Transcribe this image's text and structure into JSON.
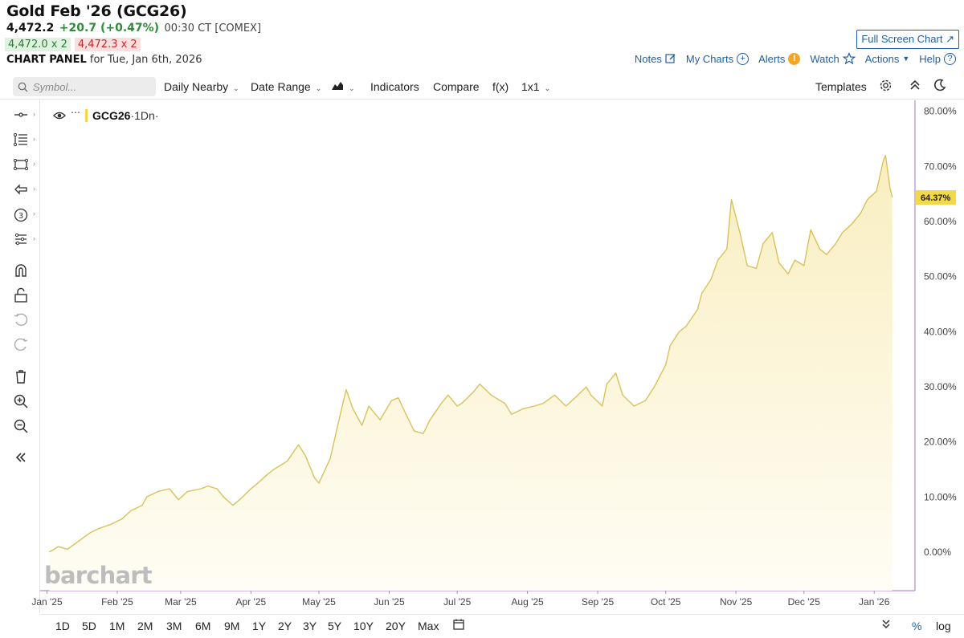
{
  "header": {
    "title": "Gold Feb '26 (GCG26)",
    "last": "4,472.2",
    "change": "+20.7 (+0.47%)",
    "time": "00:30 CT [COMEX]",
    "bid": "4,472.0 x 2",
    "ask": "4,472.3 x 2",
    "panel_label": "CHART PANEL",
    "panel_date": "for Tue, Jan 6th, 2026",
    "full_screen": "Full Screen Chart",
    "links": [
      "Notes",
      "My Charts",
      "Alerts",
      "Watch",
      "Actions",
      "Help"
    ]
  },
  "toolbar": {
    "symbol_placeholder": "Symbol...",
    "interval": "Daily Nearby",
    "date_range": "Date Range",
    "indicators": "Indicators",
    "compare": "Compare",
    "fx": "f(x)",
    "layout": "1x1",
    "templates": "Templates"
  },
  "legend": {
    "symbol": "GCG26",
    "suffix": "·1Dn·"
  },
  "watermark": "barchart",
  "ranges": [
    "1D",
    "5D",
    "1M",
    "2M",
    "3M",
    "6M",
    "9M",
    "1Y",
    "2Y",
    "3Y",
    "5Y",
    "10Y",
    "20Y",
    "Max"
  ],
  "bottom": {
    "pct": "%",
    "log": "log"
  },
  "colors": {
    "line": "#d9c25a",
    "fill_top": "#f9eec0",
    "fill_bottom": "#fffdf5",
    "tag": "#f3d84a",
    "link": "#1f5fa8"
  },
  "chart_data": {
    "type": "area",
    "y_ticks": [
      "80.00%",
      "70.00%",
      "60.00%",
      "50.00%",
      "40.00%",
      "30.00%",
      "20.00%",
      "10.00%",
      "0.00%"
    ],
    "ylim": [
      -7,
      82
    ],
    "x_ticks": [
      "Jan '25",
      "Feb '25",
      "Mar '25",
      "Apr '25",
      "May '25",
      "Jun '25",
      "Jul '25",
      "Aug '25",
      "Sep '25",
      "Oct '25",
      "Nov '25",
      "Dec '25",
      "Jan '26"
    ],
    "last_value_label": "64.37%",
    "series": [
      {
        "points": [
          [
            "2025-01-02",
            0.0
          ],
          [
            "2025-01-06",
            1.0
          ],
          [
            "2025-01-10",
            0.5
          ],
          [
            "2025-01-15",
            2.0
          ],
          [
            "2025-01-20",
            3.5
          ],
          [
            "2025-01-24",
            4.3
          ],
          [
            "2025-01-29",
            5.0
          ],
          [
            "2025-02-03",
            6.0
          ],
          [
            "2025-02-07",
            7.5
          ],
          [
            "2025-02-12",
            8.5
          ],
          [
            "2025-02-14",
            10.0
          ],
          [
            "2025-02-19",
            11.0
          ],
          [
            "2025-02-24",
            11.5
          ],
          [
            "2025-02-28",
            9.5
          ],
          [
            "2025-03-04",
            11.0
          ],
          [
            "2025-03-10",
            11.5
          ],
          [
            "2025-03-13",
            12.0
          ],
          [
            "2025-03-17",
            11.5
          ],
          [
            "2025-03-20",
            10.0
          ],
          [
            "2025-03-24",
            8.5
          ],
          [
            "2025-03-27",
            9.5
          ],
          [
            "2025-04-01",
            11.5
          ],
          [
            "2025-04-04",
            12.5
          ],
          [
            "2025-04-08",
            14.0
          ],
          [
            "2025-04-11",
            15.0
          ],
          [
            "2025-04-15",
            16.0
          ],
          [
            "2025-04-17",
            16.5
          ],
          [
            "2025-04-22",
            19.5
          ],
          [
            "2025-04-25",
            17.5
          ],
          [
            "2025-04-29",
            13.5
          ],
          [
            "2025-05-01",
            12.5
          ],
          [
            "2025-05-06",
            17.0
          ],
          [
            "2025-05-09",
            22.5
          ],
          [
            "2025-05-13",
            29.5
          ],
          [
            "2025-05-16",
            26.0
          ],
          [
            "2025-05-20",
            23.0
          ],
          [
            "2025-05-23",
            26.5
          ],
          [
            "2025-05-28",
            24.0
          ],
          [
            "2025-06-02",
            27.5
          ],
          [
            "2025-06-05",
            28.0
          ],
          [
            "2025-06-09",
            24.5
          ],
          [
            "2025-06-12",
            22.0
          ],
          [
            "2025-06-16",
            21.5
          ],
          [
            "2025-06-19",
            24.0
          ],
          [
            "2025-06-24",
            27.0
          ],
          [
            "2025-06-27",
            28.5
          ],
          [
            "2025-07-01",
            26.5
          ],
          [
            "2025-07-03",
            27.0
          ],
          [
            "2025-07-08",
            29.0
          ],
          [
            "2025-07-11",
            30.5
          ],
          [
            "2025-07-16",
            28.5
          ],
          [
            "2025-07-22",
            27.0
          ],
          [
            "2025-07-25",
            25.0
          ],
          [
            "2025-07-30",
            26.0
          ],
          [
            "2025-08-04",
            26.5
          ],
          [
            "2025-08-08",
            27.0
          ],
          [
            "2025-08-13",
            28.5
          ],
          [
            "2025-08-18",
            26.5
          ],
          [
            "2025-08-22",
            28.0
          ],
          [
            "2025-08-27",
            30.0
          ],
          [
            "2025-08-29",
            28.5
          ],
          [
            "2025-09-03",
            26.5
          ],
          [
            "2025-09-05",
            30.5
          ],
          [
            "2025-09-09",
            32.5
          ],
          [
            "2025-09-12",
            28.5
          ],
          [
            "2025-09-17",
            26.5
          ],
          [
            "2025-09-22",
            27.5
          ],
          [
            "2025-09-26",
            30.0
          ],
          [
            "2025-10-01",
            34.0
          ],
          [
            "2025-10-03",
            37.5
          ],
          [
            "2025-10-07",
            40.0
          ],
          [
            "2025-10-10",
            41.0
          ],
          [
            "2025-10-15",
            44.0
          ],
          [
            "2025-10-17",
            47.0
          ],
          [
            "2025-10-21",
            49.5
          ],
          [
            "2025-10-24",
            53.0
          ],
          [
            "2025-10-28",
            55.0
          ],
          [
            "2025-10-30",
            64.0
          ],
          [
            "2025-11-03",
            57.5
          ],
          [
            "2025-11-06",
            52.0
          ],
          [
            "2025-11-10",
            51.5
          ],
          [
            "2025-11-13",
            56.0
          ],
          [
            "2025-11-17",
            58.0
          ],
          [
            "2025-11-20",
            52.5
          ],
          [
            "2025-11-24",
            50.5
          ],
          [
            "2025-11-27",
            53.0
          ],
          [
            "2025-12-01",
            52.0
          ],
          [
            "2025-12-04",
            58.5
          ],
          [
            "2025-12-08",
            55.0
          ],
          [
            "2025-12-11",
            54.0
          ],
          [
            "2025-12-15",
            56.0
          ],
          [
            "2025-12-18",
            58.0
          ],
          [
            "2025-12-22",
            59.5
          ],
          [
            "2025-12-26",
            61.5
          ],
          [
            "2025-12-29",
            64.0
          ],
          [
            "2026-01-02",
            65.5
          ],
          [
            "2026-01-05",
            71.0
          ],
          [
            "2026-01-06",
            72.0
          ],
          [
            "2026-01-08",
            66.0
          ],
          [
            "2026-01-09",
            64.37
          ]
        ]
      }
    ]
  }
}
